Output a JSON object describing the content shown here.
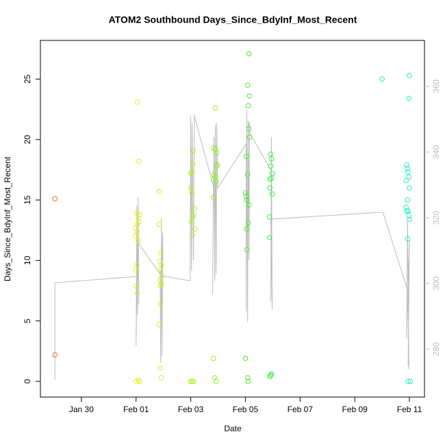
{
  "chart_data": {
    "type": "scatter",
    "title": "ATOM2 Southbound Days_Since_BdyInf_Most_Recent",
    "x_label": "Date",
    "y_label": "Days_Since_BdyInf_Most_Recent",
    "xlim": [
      28.5,
      42.55
    ],
    "ylim": [
      -1.3,
      28.2
    ],
    "y2lim": [
      265.4,
      374
    ],
    "xticks": [
      {
        "value": 30,
        "label": "Jan 30"
      },
      {
        "value": 32,
        "label": "Feb 01"
      },
      {
        "value": 34,
        "label": "Feb 03"
      },
      {
        "value": 36,
        "label": "Feb 05"
      },
      {
        "value": 38,
        "label": "Feb 07"
      },
      {
        "value": 40,
        "label": "Feb 09"
      },
      {
        "value": 42,
        "label": "Feb 11"
      }
    ],
    "yticks": [
      0,
      5,
      10,
      15,
      20,
      25
    ],
    "y2ticks": [
      280,
      300,
      320,
      340,
      360
    ],
    "y2_color": "#bbbbbb",
    "series": [
      {
        "style": "points",
        "color": "#e8701c",
        "x": [
          29.03,
          29.03
        ],
        "values": [
          15.1,
          2.2
        ]
      },
      {
        "style": "points",
        "color": "#e2ee22",
        "x": [
          32.05,
          32.1,
          32.03,
          32.13,
          32.08,
          32.1,
          32.05,
          32.0,
          32.03,
          32.0,
          32.08,
          32.03,
          32.0,
          32.0,
          32.05,
          32.08,
          32.0,
          32.13
        ],
        "values": [
          23.1,
          18.2,
          13.9,
          13.8,
          13.5,
          13.2,
          13.0,
          12.7,
          12.4,
          12.0,
          11.6,
          9.6,
          9.2,
          7.9,
          7.3,
          0.1,
          0.0,
          0.0
        ]
      },
      {
        "style": "points",
        "color": "#d6f021",
        "x": [
          32.85,
          32.85,
          32.9,
          32.88,
          32.93,
          32.9,
          32.95,
          32.88,
          32.93,
          32.9,
          32.9,
          32.85,
          32.88,
          32.93
        ],
        "values": [
          15.7,
          13.0,
          10.6,
          9.9,
          9.6,
          9.2,
          8.7,
          8.4,
          8.1,
          7.9,
          6.4,
          4.7,
          1.1,
          0.3
        ]
      },
      {
        "style": "points",
        "color": "#aef222",
        "x": [
          34.1,
          34.08,
          34.03,
          34.0,
          34.0,
          34.05,
          34.13,
          34.1,
          34.08,
          34.03,
          34.15,
          34.05,
          34.0,
          34.05,
          34.1
        ],
        "values": [
          19.1,
          18.0,
          17.3,
          17.2,
          16.0,
          15.6,
          14.3,
          13.8,
          13.6,
          13.2,
          12.6,
          12.1,
          0.0,
          0.0,
          0.0
        ]
      },
      {
        "style": "points",
        "color": "#8ef224",
        "x": [
          34.9,
          34.83,
          34.9,
          34.95,
          34.98,
          34.95,
          34.85,
          34.9,
          34.83,
          34.93,
          34.83,
          34.83,
          34.88,
          34.93
        ],
        "values": [
          22.6,
          19.3,
          19.2,
          18.9,
          17.9,
          17.8,
          17.1,
          16.9,
          16.7,
          16.5,
          15.2,
          1.9,
          0.3,
          0.0
        ]
      },
      {
        "style": "points",
        "color": "#4cee2c",
        "x": [
          36.13,
          36.08,
          36.15,
          36.1,
          36.13,
          36.15,
          36.03,
          36.08,
          36.0,
          36.03,
          36.05,
          36.13,
          36.1,
          36.05,
          36.05,
          36.0,
          36.08,
          36.1
        ],
        "values": [
          27.1,
          24.5,
          23.6,
          22.8,
          20.9,
          20.2,
          18.6,
          17.1,
          15.6,
          15.3,
          15.0,
          14.6,
          13.1,
          12.6,
          10.9,
          1.9,
          0.3,
          0.0
        ]
      },
      {
        "style": "points",
        "color": "#38ee48",
        "x": [
          36.93,
          36.95,
          36.93,
          36.98,
          36.9,
          36.95,
          36.9,
          36.98,
          36.88,
          36.88,
          36.95,
          36.93,
          36.9
        ],
        "values": [
          18.8,
          18.4,
          17.8,
          17.2,
          16.7,
          16.8,
          16.0,
          15.5,
          13.6,
          11.9,
          0.6,
          0.5,
          0.4
        ]
      },
      {
        "style": "points",
        "color": "#22f0c0",
        "x": [
          41.0,
          42.0,
          41.98,
          41.9,
          41.93,
          41.95,
          41.98,
          41.88,
          42.0,
          41.93,
          41.88,
          41.9,
          41.95,
          41.98,
          42.0,
          41.93,
          41.95,
          42.03
        ],
        "values": [
          25.0,
          25.3,
          23.4,
          17.9,
          17.6,
          17.3,
          16.9,
          16.6,
          16.0,
          15.0,
          14.4,
          14.1,
          14.1,
          13.7,
          13.4,
          11.8,
          0.0,
          0.0
        ]
      },
      {
        "style": "line",
        "axis": "y2",
        "color": "#bbbbbb",
        "x": [
          29.03,
          29.03,
          32.03,
          32.0,
          32.03,
          32.05,
          32.08,
          32.1,
          32.08,
          32.93,
          32.88,
          32.9,
          32.93,
          32.95,
          32.98,
          32.93,
          33.98,
          34.0,
          34.03,
          34.05,
          34.1,
          34.13,
          34.15,
          34.83,
          34.8,
          34.85,
          34.88,
          34.9,
          34.93,
          34.95,
          34.98,
          36.03,
          36.03,
          36.05,
          36.08,
          36.1,
          36.13,
          36.15,
          36.1,
          36.95,
          36.93,
          36.95,
          36.98,
          36.93,
          41.03,
          41.98,
          41.95,
          42.0,
          41.9,
          41.93,
          41.98
        ],
        "values": [
          270.6,
          300.2,
          302.1,
          281.0,
          323.8,
          290.4,
          326.3,
          293.5,
          312.3,
          302.3,
          304.0,
          275.8,
          320.0,
          277.9,
          315.4,
          302.3,
          300.8,
          350.8,
          304.0,
          348.8,
          307.1,
          351.3,
          350.4,
          329.6,
          296.7,
          344.6,
          300.8,
          348.3,
          302.9,
          348.8,
          329.0,
          342.5,
          291.5,
          352.9,
          288.3,
          349.6,
          307.1,
          349.2,
          346.7,
          334.2,
          294.6,
          344.6,
          292.1,
          319.6,
          321.7,
          296.7,
          274.8,
          313.3,
          283.1,
          319.0,
          273.8
        ]
      }
    ]
  }
}
